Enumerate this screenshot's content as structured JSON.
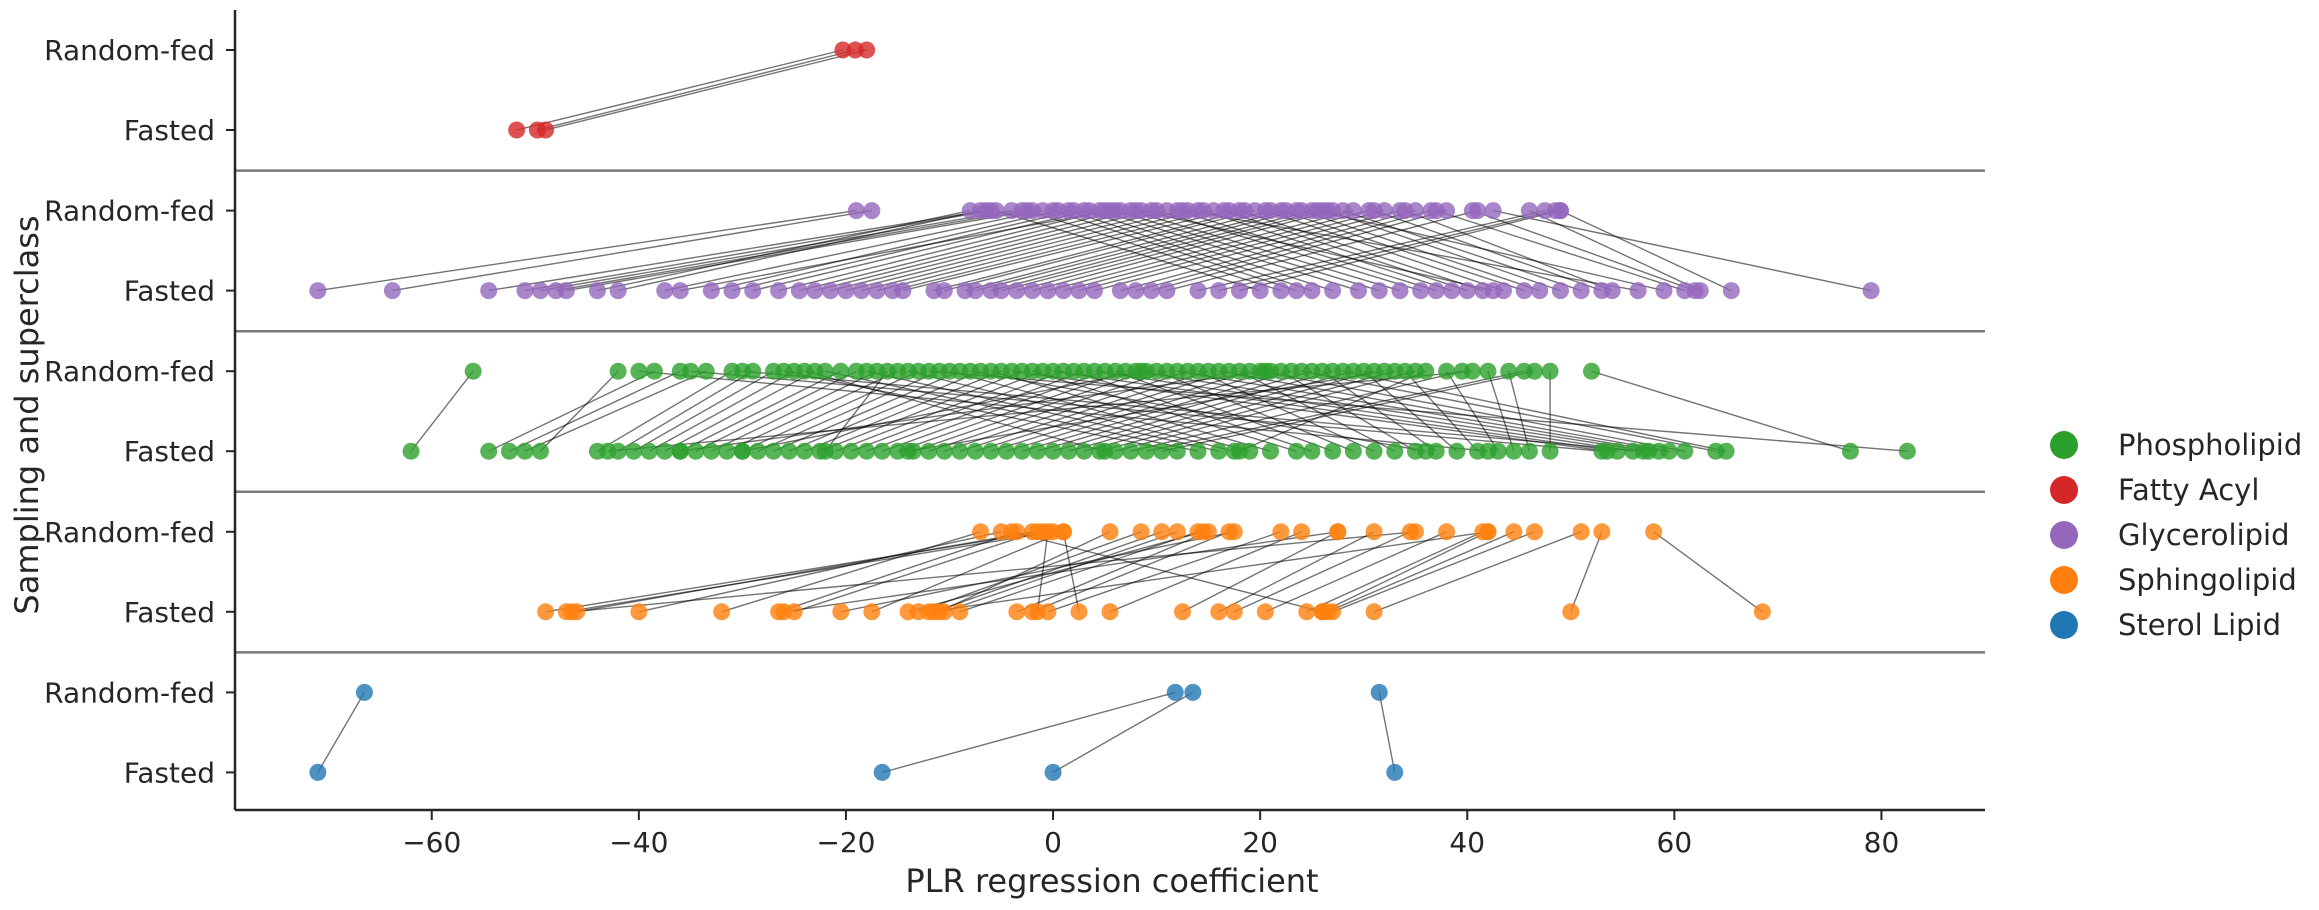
{
  "chart_data": {
    "type": "scatter",
    "title": "",
    "xlabel": "PLR regression coefficient",
    "ylabel": "Sampling and superclass",
    "xlim": [
      -79,
      90
    ],
    "xticks": [
      -60,
      -40,
      -20,
      0,
      20,
      40,
      60,
      80
    ],
    "xtick_labels": [
      "−60",
      "−40",
      "−20",
      "0",
      "20",
      "40",
      "60",
      "80"
    ],
    "row_labels": [
      "Random-fed",
      "Fasted"
    ],
    "grid": false,
    "legend_placement": "right",
    "legend": [
      {
        "name": "Phospholipid",
        "color": "#2ca02c"
      },
      {
        "name": "Fatty Acyl",
        "color": "#d62728"
      },
      {
        "name": "Glycerolipid",
        "color": "#9467bd"
      },
      {
        "name": "Sphingolipid",
        "color": "#ff7f0e"
      },
      {
        "name": "Sterol Lipid",
        "color": "#1f77b4"
      }
    ],
    "panels": [
      {
        "superclass": "Fatty Acyl",
        "color": "#d62728",
        "pairs": [
          [
            -20.3,
            -51.8
          ],
          [
            -19.1,
            -49.8
          ],
          [
            -18.0,
            -49.0
          ]
        ]
      },
      {
        "superclass": "Glycerolipid",
        "color": "#9467bd",
        "pairs": [
          [
            -19.0,
            -71.0
          ],
          [
            -17.5,
            -63.8
          ],
          [
            -6.5,
            -54.5
          ],
          [
            -6.0,
            -51.0
          ],
          [
            -4.0,
            -49.5
          ],
          [
            -3.0,
            -48.0
          ],
          [
            -2.0,
            -47.0
          ],
          [
            -1.0,
            -37.5
          ],
          [
            0.5,
            -33.0
          ],
          [
            2.0,
            -31.0
          ],
          [
            3.5,
            -29.0
          ],
          [
            5.0,
            -26.5
          ],
          [
            6.5,
            -24.5
          ],
          [
            8.0,
            -23.0
          ],
          [
            9.5,
            -21.5
          ],
          [
            11.0,
            -20.0
          ],
          [
            12.5,
            -18.5
          ],
          [
            14.0,
            -17.0
          ],
          [
            15.5,
            -15.5
          ],
          [
            17.0,
            -14.5
          ],
          [
            18.5,
            -11.5
          ],
          [
            19.5,
            -10.5
          ],
          [
            21.0,
            -8.5
          ],
          [
            22.5,
            -7.5
          ],
          [
            23.5,
            -6.0
          ],
          [
            25.0,
            -5.0
          ],
          [
            26.0,
            -3.5
          ],
          [
            27.0,
            -2.0
          ],
          [
            29.0,
            -0.5
          ],
          [
            30.5,
            1.0
          ],
          [
            32.0,
            2.5
          ],
          [
            33.5,
            4.0
          ],
          [
            35.0,
            6.5
          ],
          [
            36.5,
            8.0
          ],
          [
            38.0,
            9.5
          ],
          [
            41.0,
            11.0
          ],
          [
            47.5,
            14.0
          ],
          [
            48.5,
            16.0
          ],
          [
            49.0,
            18.0
          ],
          [
            -5.5,
            20.0
          ],
          [
            -2.5,
            22.0
          ],
          [
            0.0,
            23.5
          ],
          [
            1.5,
            25.0
          ],
          [
            3.0,
            27.0
          ],
          [
            4.5,
            29.5
          ],
          [
            6.0,
            31.5
          ],
          [
            7.5,
            33.5
          ],
          [
            10.0,
            35.5
          ],
          [
            12.0,
            37.0
          ],
          [
            14.5,
            38.5
          ],
          [
            16.5,
            40.0
          ],
          [
            18.0,
            41.5
          ],
          [
            20.5,
            43.5
          ],
          [
            22.0,
            45.5
          ],
          [
            24.0,
            47.0
          ],
          [
            26.5,
            49.0
          ],
          [
            28.0,
            51.0
          ],
          [
            31.0,
            53.0
          ],
          [
            34.0,
            54.0
          ],
          [
            37.0,
            61.0
          ],
          [
            40.5,
            62.0
          ],
          [
            46.0,
            62.5
          ],
          [
            49.0,
            65.5
          ],
          [
            42.5,
            79.0
          ],
          [
            -8.0,
            -44.0
          ],
          [
            -7.0,
            -42.0
          ],
          [
            5.5,
            -36.0
          ],
          [
            8.5,
            42.5
          ],
          [
            13.0,
            56.5
          ],
          [
            25.5,
            59.0
          ]
        ]
      },
      {
        "superclass": "Phospholipid",
        "color": "#2ca02c",
        "pairs": [
          [
            -56.0,
            -62.0
          ],
          [
            -42.0,
            -49.5
          ],
          [
            -38.5,
            -54.5
          ],
          [
            -36.0,
            -52.5
          ],
          [
            -33.5,
            -51.0
          ],
          [
            -31.0,
            -44.0
          ],
          [
            -29.0,
            -42.0
          ],
          [
            -27.0,
            -40.5
          ],
          [
            -25.0,
            -39.0
          ],
          [
            -23.0,
            -37.5
          ],
          [
            -20.5,
            -36.0
          ],
          [
            -19.0,
            -34.5
          ],
          [
            -17.0,
            -33.0
          ],
          [
            -15.0,
            -31.5
          ],
          [
            -13.0,
            -30.0
          ],
          [
            -11.0,
            -28.5
          ],
          [
            -9.0,
            -27.0
          ],
          [
            -7.0,
            -25.5
          ],
          [
            -5.0,
            -24.0
          ],
          [
            -3.0,
            -22.5
          ],
          [
            -1.0,
            -21.0
          ],
          [
            1.0,
            -19.5
          ],
          [
            3.0,
            -18.0
          ],
          [
            5.0,
            -16.5
          ],
          [
            7.0,
            -15.0
          ],
          [
            9.0,
            -13.5
          ],
          [
            11.0,
            -12.0
          ],
          [
            13.0,
            -10.5
          ],
          [
            15.0,
            -9.0
          ],
          [
            17.0,
            -7.5
          ],
          [
            19.0,
            -6.0
          ],
          [
            21.0,
            -4.5
          ],
          [
            23.0,
            -3.0
          ],
          [
            25.0,
            -1.5
          ],
          [
            27.0,
            0.0
          ],
          [
            29.0,
            1.5
          ],
          [
            31.0,
            3.0
          ],
          [
            33.0,
            4.5
          ],
          [
            35.0,
            6.0
          ],
          [
            39.5,
            7.5
          ],
          [
            45.5,
            9.0
          ],
          [
            46.5,
            10.5
          ],
          [
            52.0,
            77.0
          ],
          [
            -12.0,
            82.5
          ],
          [
            -26.0,
            12.0
          ],
          [
            -22.0,
            14.0
          ],
          [
            -18.0,
            16.0
          ],
          [
            -14.0,
            17.5
          ],
          [
            -10.0,
            19.0
          ],
          [
            -6.0,
            21.0
          ],
          [
            -2.0,
            23.5
          ],
          [
            2.0,
            25.0
          ],
          [
            6.0,
            27.0
          ],
          [
            10.0,
            29.0
          ],
          [
            14.0,
            31.0
          ],
          [
            18.0,
            33.0
          ],
          [
            22.0,
            35.0
          ],
          [
            26.0,
            37.0
          ],
          [
            30.0,
            39.0
          ],
          [
            34.0,
            41.0
          ],
          [
            38.0,
            43.0
          ],
          [
            42.0,
            44.5
          ],
          [
            44.0,
            46.0
          ],
          [
            48.0,
            48.0
          ],
          [
            -4.0,
            53.5
          ],
          [
            0.0,
            54.5
          ],
          [
            4.0,
            56.0
          ],
          [
            8.0,
            57.5
          ],
          [
            12.0,
            58.5
          ],
          [
            16.0,
            59.5
          ],
          [
            20.0,
            61.0
          ],
          [
            24.0,
            64.0
          ],
          [
            28.0,
            65.0
          ],
          [
            -35.0,
            53.0
          ],
          [
            -30.0,
            57.0
          ],
          [
            40.5,
            -43.0
          ],
          [
            -40.0,
            42.0
          ],
          [
            -16.0,
            -22.0
          ],
          [
            32.0,
            -14.0
          ],
          [
            -24.0,
            5.0
          ],
          [
            36.0,
            18.0
          ],
          [
            -8.0,
            36.0
          ],
          [
            8.5,
            -30.0
          ],
          [
            20.5,
            -36.0
          ]
        ]
      },
      {
        "superclass": "Sphingolipid",
        "color": "#ff7f0e",
        "pairs": [
          [
            -1.0,
            -49.0
          ],
          [
            0.0,
            -47.0
          ],
          [
            -2.0,
            -46.0
          ],
          [
            -5.0,
            -40.0
          ],
          [
            -7.0,
            -32.0
          ],
          [
            -3.5,
            -26.5
          ],
          [
            -1.5,
            -25.0
          ],
          [
            1.0,
            -17.5
          ],
          [
            8.5,
            -13.0
          ],
          [
            10.5,
            -11.5
          ],
          [
            12.0,
            -10.5
          ],
          [
            14.0,
            -9.0
          ],
          [
            15.0,
            -3.5
          ],
          [
            17.0,
            -2.0
          ],
          [
            22.0,
            -0.5
          ],
          [
            24.0,
            5.5
          ],
          [
            27.5,
            12.5
          ],
          [
            31.0,
            16.0
          ],
          [
            34.5,
            17.5
          ],
          [
            38.0,
            20.5
          ],
          [
            41.5,
            24.5
          ],
          [
            42.0,
            26.0
          ],
          [
            44.5,
            26.5
          ],
          [
            46.5,
            27.0
          ],
          [
            51.0,
            31.0
          ],
          [
            53.0,
            50.0
          ],
          [
            58.0,
            68.5
          ],
          [
            14.5,
            -14.0
          ],
          [
            5.5,
            -11.0
          ],
          [
            -0.5,
            -1.5
          ],
          [
            -4.0,
            26.0
          ],
          [
            1.0,
            2.5
          ],
          [
            17.5,
            -20.5
          ],
          [
            27.5,
            -26.0
          ],
          [
            35.0,
            -46.5
          ],
          [
            42.0,
            -12.0
          ]
        ]
      },
      {
        "superclass": "Sterol Lipid",
        "color": "#1f77b4",
        "pairs": [
          [
            -66.5,
            -71.0
          ],
          [
            11.8,
            -16.5
          ],
          [
            13.5,
            0.0
          ],
          [
            31.5,
            33.0
          ]
        ]
      }
    ]
  }
}
